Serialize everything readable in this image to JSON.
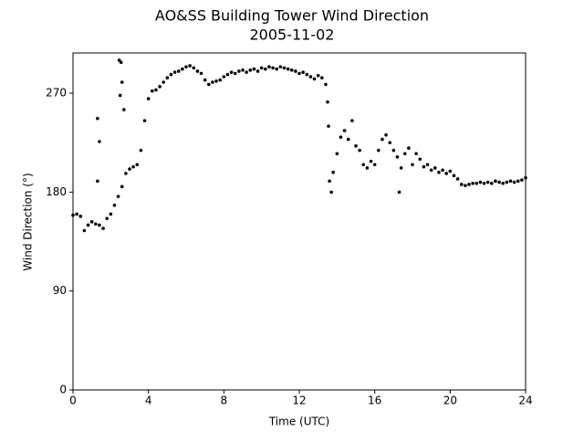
{
  "chart_data": {
    "type": "scatter",
    "title": "AO&SS Building Tower Wind Direction",
    "subtitle": "2005-11-02",
    "x_label": "Time (UTC)",
    "y_label": "Wind Direction (°)",
    "color": "#000000",
    "xlim": [
      0,
      24
    ],
    "xticks": [
      0,
      4,
      8,
      12,
      16,
      20,
      24
    ],
    "ylim": [
      0,
      306.6
    ],
    "yticks": [
      0,
      90,
      180,
      270
    ],
    "x": [
      0,
      0.2,
      0.4,
      0.6,
      0.8,
      1,
      1.2,
      1.4,
      1.6,
      1.8,
      2,
      2.2,
      2.4,
      2.6,
      2.8,
      3,
      3.2,
      3.4,
      3.6,
      3.8,
      4,
      4.2,
      4.4,
      4.6,
      4.8,
      5,
      5.2,
      5.4,
      5.6,
      5.8,
      6,
      6.2,
      6.4,
      6.6,
      6.8,
      7,
      7.2,
      7.4,
      7.6,
      7.8,
      8,
      8.2,
      8.4,
      8.6,
      8.8,
      9,
      9.2,
      9.4,
      9.6,
      9.8,
      10,
      10.2,
      10.4,
      10.6,
      10.8,
      11,
      11.2,
      11.4,
      11.6,
      11.8,
      12,
      12.2,
      12.4,
      12.6,
      12.8,
      13,
      13.2,
      13.4,
      13.6,
      13.8,
      14,
      14.2,
      14.4,
      14.6,
      14.8,
      15,
      15.2,
      15.4,
      15.6,
      15.8,
      16,
      16.2,
      16.4,
      16.6,
      16.8,
      17,
      17.2,
      17.4,
      17.6,
      17.8,
      18,
      18.2,
      18.4,
      18.6,
      18.8,
      19,
      19.2,
      19.4,
      19.6,
      19.8,
      20,
      20.2,
      20.4,
      20.6,
      20.8,
      21,
      21.2,
      21.4,
      21.6,
      21.8,
      22,
      22.2,
      22.4,
      22.6,
      22.8,
      23,
      23.2,
      23.4,
      23.6,
      23.8,
      24,
      1.3,
      1.4,
      1.3,
      2.45,
      2.55,
      2.6,
      2.7,
      2.5,
      13.5,
      13.55,
      13.7,
      17.3
    ],
    "values": [
      159,
      160,
      158,
      145,
      150,
      153,
      151,
      150,
      147,
      156,
      160,
      168,
      176,
      185,
      197,
      201,
      203,
      205,
      218,
      245,
      265,
      272,
      273,
      276,
      280,
      284,
      287,
      289,
      290,
      292,
      294,
      295,
      293,
      290,
      288,
      282,
      278,
      280,
      281,
      282,
      285,
      287,
      289,
      288,
      290,
      291,
      289,
      291,
      292,
      290,
      293,
      292,
      294,
      293,
      292,
      294,
      293,
      292,
      291,
      290,
      288,
      289,
      287,
      285,
      283,
      286,
      284,
      278,
      190,
      198,
      215,
      230,
      236,
      228,
      245,
      222,
      218,
      205,
      202,
      208,
      205,
      218,
      228,
      232,
      225,
      218,
      212,
      202,
      215,
      220,
      205,
      215,
      210,
      203,
      205,
      200,
      202,
      198,
      200,
      197,
      199,
      195,
      192,
      187,
      186,
      187,
      188,
      188,
      189,
      188,
      189,
      188,
      190,
      189,
      188,
      189,
      190,
      189,
      190,
      191,
      193,
      247,
      226,
      190,
      300,
      298,
      280,
      255,
      268,
      262,
      240,
      180,
      180
    ]
  }
}
